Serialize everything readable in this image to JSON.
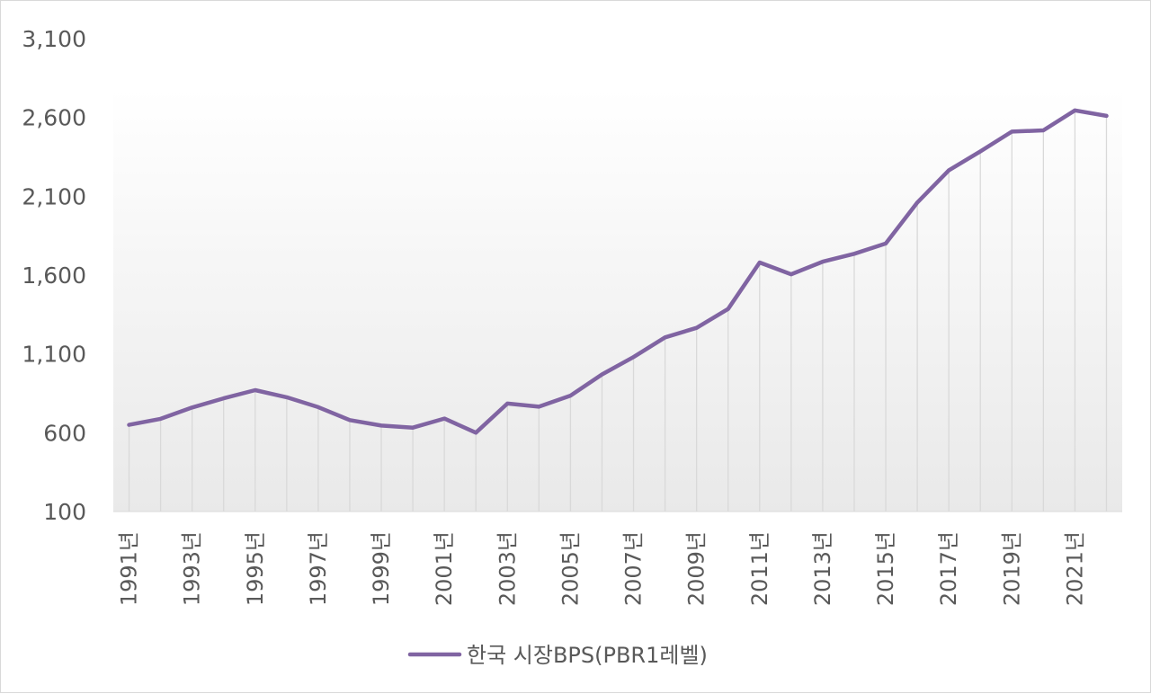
{
  "chart_data": {
    "type": "line",
    "title": "",
    "xlabel": "",
    "ylabel": "",
    "x": [
      "1991년",
      "1992년",
      "1993년",
      "1994년",
      "1995년",
      "1996년",
      "1997년",
      "1998년",
      "1999년",
      "2000년",
      "2001년",
      "2002년",
      "2003년",
      "2004년",
      "2005년",
      "2006년",
      "2007년",
      "2008년",
      "2009년",
      "2010년",
      "2011년",
      "2012년",
      "2013년",
      "2014년",
      "2015년",
      "2016년",
      "2017년",
      "2018년",
      "2019년",
      "2020년",
      "2021년",
      "2022년"
    ],
    "x_tick_labels": [
      "1991년",
      "1993년",
      "1995년",
      "1997년",
      "1999년",
      "2001년",
      "2003년",
      "2005년",
      "2007년",
      "2009년",
      "2011년",
      "2013년",
      "2015년",
      "2017년",
      "2019년",
      "2021년"
    ],
    "series": [
      {
        "name": "한국 시장BPS(PBR1레벨)",
        "color": "#8064a2",
        "values": [
          650,
          688,
          760,
          818,
          870,
          825,
          762,
          680,
          645,
          632,
          690,
          600,
          785,
          765,
          835,
          970,
          1080,
          1205,
          1265,
          1385,
          1680,
          1605,
          1685,
          1735,
          1800,
          2060,
          2265,
          2385,
          2510,
          2518,
          2645,
          2610
        ]
      }
    ],
    "ylim": [
      100,
      3100
    ],
    "y_ticks": [
      100,
      600,
      1100,
      1600,
      2100,
      2600,
      3100
    ],
    "y_tick_labels": [
      "100",
      "600",
      "1,100",
      "1,600",
      "2,100",
      "2,600",
      "3,100"
    ],
    "grid": false,
    "drop_lines": true,
    "legend_position": "bottom"
  }
}
